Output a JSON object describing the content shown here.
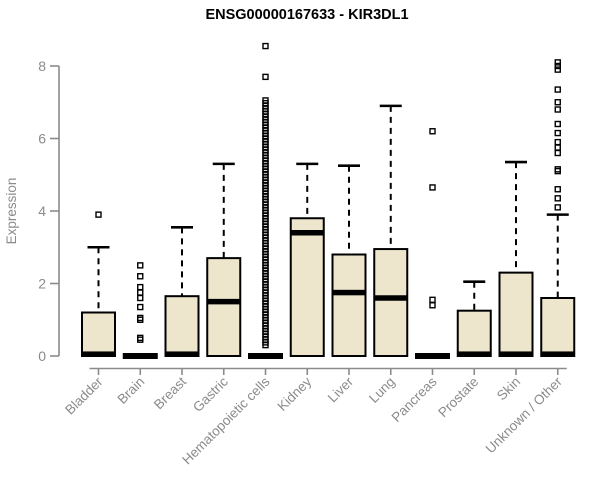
{
  "title": "ENSG00000167633 - KIR3DL1",
  "chart_data": {
    "type": "boxplot",
    "title": "ENSG00000167633 - KIR3DL1",
    "xlabel": "",
    "ylabel": "Expression",
    "ylim": [
      0,
      8.6
    ],
    "yticks": [
      0,
      2,
      4,
      6,
      8
    ],
    "grid": false,
    "legend": "none",
    "colors": {
      "box_fill": "#EDE6CC",
      "box_border": "#000000",
      "median": "#000000",
      "whisker": "#000000",
      "outlier": "#000000",
      "axis": "#8b8b8b",
      "tick_label": "#8b8b8b",
      "title": "#000000",
      "background": "#ffffff"
    },
    "categories": [
      {
        "label": "Bladder",
        "whisker_low": 0,
        "q1": 0,
        "median": 0.05,
        "q3": 1.2,
        "whisker_high": 3.0,
        "outliers": [
          3.9
        ]
      },
      {
        "label": "Brain",
        "whisker_low": 0,
        "q1": 0,
        "median": 0,
        "q3": 0,
        "whisker_high": 0,
        "outliers": [
          0.45,
          0.5,
          1.0,
          1.05,
          1.35,
          1.6,
          1.75,
          1.9,
          2.2,
          2.5
        ]
      },
      {
        "label": "Breast",
        "whisker_low": 0,
        "q1": 0,
        "median": 0.05,
        "q3": 1.65,
        "whisker_high": 3.55,
        "outliers": []
      },
      {
        "label": "Gastric",
        "whisker_low": 0,
        "q1": 0,
        "median": 1.5,
        "q3": 2.7,
        "whisker_high": 5.3,
        "outliers": []
      },
      {
        "label": "Hematopoietic cells",
        "whisker_low": 0,
        "q1": 0,
        "median": 0,
        "q3": 0,
        "whisker_high": 0,
        "outliers": [
          7.7,
          8.55
        ],
        "outlier_run": {
          "min": 0.3,
          "max": 7.05,
          "count": 90
        }
      },
      {
        "label": "Kidney",
        "whisker_low": 0,
        "q1": 0,
        "median": 3.4,
        "q3": 3.8,
        "whisker_high": 5.3,
        "outliers": []
      },
      {
        "label": "Liver",
        "whisker_low": 0,
        "q1": 0,
        "median": 1.75,
        "q3": 2.8,
        "whisker_high": 5.25,
        "outliers": []
      },
      {
        "label": "Lung",
        "whisker_low": 0,
        "q1": 0,
        "median": 1.6,
        "q3": 2.95,
        "whisker_high": 6.9,
        "outliers": []
      },
      {
        "label": "Pancreas",
        "whisker_low": 0,
        "q1": 0,
        "median": 0,
        "q3": 0,
        "whisker_high": 0,
        "outliers": [
          1.4,
          1.55,
          4.65,
          6.2
        ]
      },
      {
        "label": "Prostate",
        "whisker_low": 0,
        "q1": 0,
        "median": 0.05,
        "q3": 1.25,
        "whisker_high": 2.05,
        "outliers": []
      },
      {
        "label": "Skin",
        "whisker_low": 0,
        "q1": 0,
        "median": 0.05,
        "q3": 2.3,
        "whisker_high": 5.35,
        "outliers": []
      },
      {
        "label": "Unknown / Other",
        "whisker_low": 0,
        "q1": 0,
        "median": 0.05,
        "q3": 1.6,
        "whisker_high": 3.9,
        "outliers": [
          4.1,
          4.35,
          4.6,
          5.1,
          5.15,
          5.6,
          5.75,
          5.9,
          6.15,
          6.4,
          6.8,
          7.0,
          7.35,
          7.9,
          8.0,
          8.1
        ]
      }
    ]
  }
}
